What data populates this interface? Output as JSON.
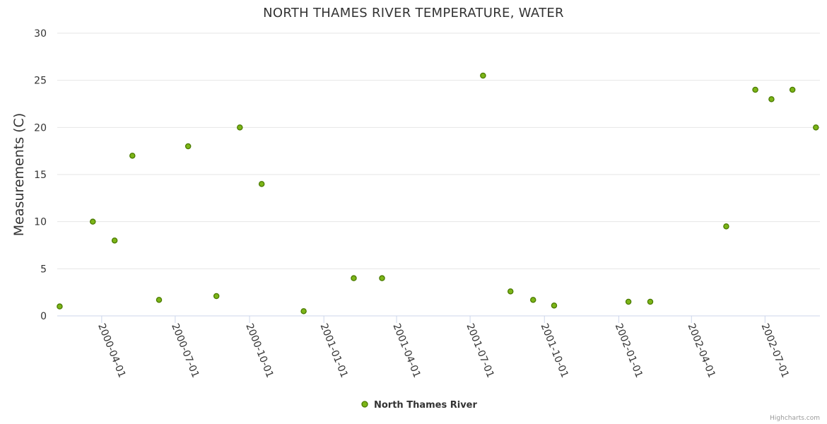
{
  "credits": "Highcharts.com",
  "chart_data": {
    "type": "scatter",
    "title": "NORTH THAMES RIVER TEMPERATURE, WATER",
    "xlabel": "",
    "ylabel": "Measurements (C)",
    "ylim": [
      0,
      30
    ],
    "yticks": [
      0,
      5,
      10,
      15,
      20,
      25,
      30
    ],
    "xlim": [
      "2000-02-06",
      "2002-09-07"
    ],
    "xticks": [
      "2000-04-01",
      "2000-07-01",
      "2000-10-01",
      "2001-01-01",
      "2001-04-01",
      "2001-07-01",
      "2001-10-01",
      "2002-01-01",
      "2002-04-01",
      "2002-07-01"
    ],
    "grid": true,
    "legend_position": "bottom-center",
    "colors": {
      "marker_fill": "#7cb518",
      "marker_stroke": "#4a7a00",
      "grid": "#e6e6e6",
      "axis": "#ccd6eb"
    },
    "series": [
      {
        "name": "North Thames River",
        "points": [
          {
            "x": "2000-02-09",
            "y": 1.0
          },
          {
            "x": "2000-03-21",
            "y": 10.0
          },
          {
            "x": "2000-04-17",
            "y": 8.0
          },
          {
            "x": "2000-05-09",
            "y": 17.0
          },
          {
            "x": "2000-06-11",
            "y": 1.7
          },
          {
            "x": "2000-07-17",
            "y": 18.0
          },
          {
            "x": "2000-08-21",
            "y": 2.1
          },
          {
            "x": "2000-09-19",
            "y": 20.0
          },
          {
            "x": "2000-10-16",
            "y": 14.0
          },
          {
            "x": "2000-12-07",
            "y": 0.5
          },
          {
            "x": "2001-02-07",
            "y": 4.0
          },
          {
            "x": "2001-03-14",
            "y": 4.0
          },
          {
            "x": "2001-07-17",
            "y": 25.5
          },
          {
            "x": "2001-08-20",
            "y": 2.6
          },
          {
            "x": "2001-09-17",
            "y": 1.7
          },
          {
            "x": "2001-10-13",
            "y": 1.1
          },
          {
            "x": "2002-01-13",
            "y": 1.5
          },
          {
            "x": "2002-02-09",
            "y": 1.5
          },
          {
            "x": "2002-05-14",
            "y": 9.5
          },
          {
            "x": "2002-06-19",
            "y": 24.0
          },
          {
            "x": "2002-07-09",
            "y": 23.0
          },
          {
            "x": "2002-08-04",
            "y": 24.0
          },
          {
            "x": "2002-09-02",
            "y": 20.0
          }
        ]
      }
    ]
  }
}
